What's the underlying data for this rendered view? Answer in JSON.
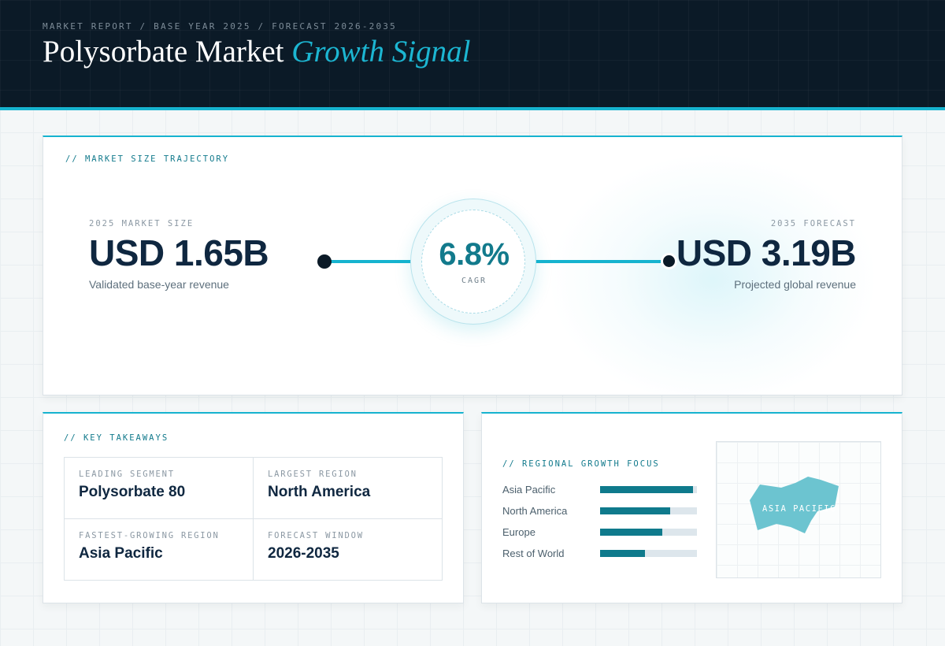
{
  "header": {
    "eyebrow": "MARKET REPORT / BASE YEAR 2025 / FORECAST 2026-2035",
    "title_main": "Polysorbate Market",
    "title_accent": "Growth Signal"
  },
  "trajectory": {
    "label": "// MARKET SIZE TRAJECTORY",
    "start": {
      "label": "2025 MARKET SIZE",
      "value": "USD 1.65B",
      "note": "Validated base-year revenue"
    },
    "cagr": {
      "value": "6.8%",
      "label": "CAGR"
    },
    "end": {
      "label": "2035 FORECAST",
      "value": "USD 3.19B",
      "note": "Projected global revenue"
    }
  },
  "takeaways": {
    "label": "// KEY TAKEAWAYS",
    "items": [
      {
        "label": "LEADING SEGMENT",
        "value": "Polysorbate 80"
      },
      {
        "label": "LARGEST REGION",
        "value": "North America"
      },
      {
        "label": "FASTEST-GROWING REGION",
        "value": "Asia Pacific"
      },
      {
        "label": "FORECAST WINDOW",
        "value": "2026-2035"
      }
    ]
  },
  "regional": {
    "label": "// REGIONAL GROWTH FOCUS",
    "bars": [
      {
        "name": "Asia Pacific",
        "fraction": 0.96
      },
      {
        "name": "North America",
        "fraction": 0.72
      },
      {
        "name": "Europe",
        "fraction": 0.64
      },
      {
        "name": "Rest of World",
        "fraction": 0.46
      }
    ],
    "map_label": "ASIA PACIFIC",
    "colors": {
      "bar": "#0f7a8c",
      "track": "#dde6ec",
      "map_region": "#6cc4d0"
    }
  }
}
